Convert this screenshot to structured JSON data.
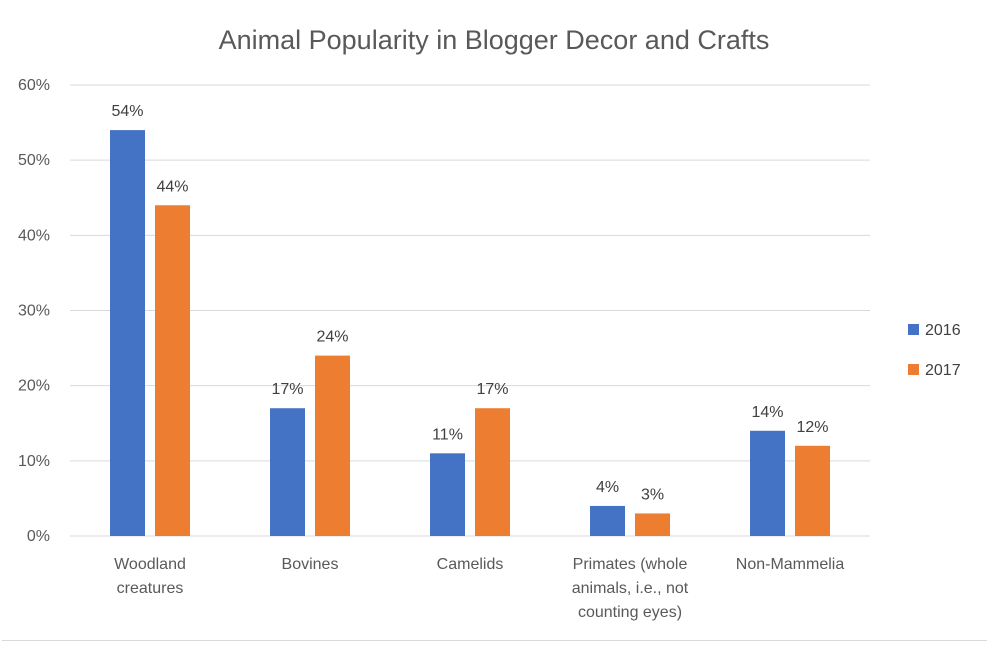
{
  "chart_data": {
    "type": "bar",
    "title": "Animal Popularity in Blogger Decor and Crafts",
    "xlabel": "",
    "ylabel": "",
    "ylim": [
      0,
      60
    ],
    "yticks": [
      "0%",
      "10%",
      "20%",
      "30%",
      "40%",
      "50%",
      "60%"
    ],
    "grid": true,
    "legend_position": "right",
    "categories": [
      [
        "Woodland",
        "creatures"
      ],
      [
        "Bovines"
      ],
      [
        "Camelids"
      ],
      [
        "Primates (whole",
        "animals, i.e., not",
        "counting eyes)"
      ],
      [
        "Non-Mammelia"
      ]
    ],
    "series": [
      {
        "name": "2016",
        "color": "#4472c4",
        "values": [
          54,
          17,
          11,
          4,
          14
        ],
        "labels": [
          "54%",
          "17%",
          "11%",
          "4%",
          "14%"
        ]
      },
      {
        "name": "2017",
        "color": "#ed7d31",
        "values": [
          44,
          24,
          17,
          3,
          12
        ],
        "labels": [
          "44%",
          "24%",
          "17%",
          "3%",
          "12%"
        ]
      }
    ]
  }
}
